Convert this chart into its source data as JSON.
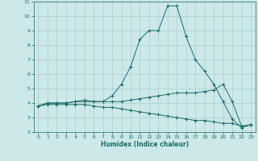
{
  "xlabel": "Humidex (Indice chaleur)",
  "x_values": [
    0,
    1,
    2,
    3,
    4,
    5,
    6,
    7,
    8,
    9,
    10,
    11,
    12,
    13,
    14,
    15,
    16,
    17,
    18,
    19,
    20,
    21,
    22,
    23
  ],
  "line1": [
    3.8,
    4.0,
    4.0,
    4.0,
    4.1,
    4.2,
    4.1,
    4.1,
    4.5,
    5.3,
    6.5,
    8.4,
    9.0,
    9.0,
    10.7,
    10.7,
    8.6,
    7.0,
    6.2,
    5.3,
    4.1,
    2.9,
    2.3,
    2.5
  ],
  "line2": [
    3.8,
    4.0,
    4.0,
    4.0,
    4.1,
    4.1,
    4.1,
    4.1,
    4.1,
    4.1,
    4.2,
    4.3,
    4.4,
    4.5,
    4.6,
    4.7,
    4.7,
    4.7,
    4.8,
    4.9,
    5.3,
    4.1,
    2.4,
    2.5
  ],
  "line3": [
    3.8,
    3.9,
    3.9,
    3.9,
    3.9,
    3.9,
    3.8,
    3.7,
    3.7,
    3.6,
    3.5,
    3.4,
    3.3,
    3.2,
    3.1,
    3.0,
    2.9,
    2.8,
    2.8,
    2.7,
    2.6,
    2.6,
    2.4,
    2.5
  ],
  "line_color": "#1a6b6b",
  "bg_color": "#cce8e8",
  "grid_color": "#aacfcf",
  "ylim": [
    2,
    11
  ],
  "xlim": [
    -0.5,
    23.5
  ],
  "yticks": [
    2,
    3,
    4,
    5,
    6,
    7,
    8,
    9,
    10,
    11
  ],
  "xticks": [
    0,
    1,
    2,
    3,
    4,
    5,
    6,
    7,
    8,
    9,
    10,
    11,
    12,
    13,
    14,
    15,
    16,
    17,
    18,
    19,
    20,
    21,
    22,
    23
  ],
  "xlabel_fontsize": 5.5,
  "tick_fontsize": 4.5,
  "linewidth": 0.7,
  "markersize": 3.0
}
